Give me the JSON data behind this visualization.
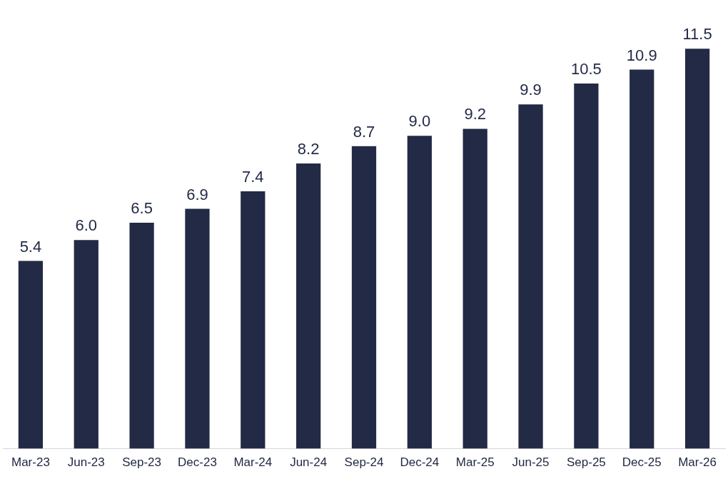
{
  "chart_data": {
    "type": "bar",
    "categories": [
      "Mar-23",
      "Jun-23",
      "Sep-23",
      "Dec-23",
      "Mar-24",
      "Jun-24",
      "Sep-24",
      "Dec-24",
      "Mar-25",
      "Jun-25",
      "Sep-25",
      "Dec-25",
      "Mar-26"
    ],
    "values": [
      5.4,
      6.0,
      6.5,
      6.9,
      7.4,
      8.2,
      8.7,
      9.0,
      9.2,
      9.9,
      10.5,
      10.9,
      11.5
    ],
    "value_labels": [
      "5.4",
      "6.0",
      "6.5",
      "6.9",
      "7.4",
      "8.2",
      "8.7",
      "9.0",
      "9.2",
      "9.9",
      "10.5",
      "10.9",
      "11.5"
    ],
    "color": "#222a45",
    "grid": false,
    "legend": false
  }
}
